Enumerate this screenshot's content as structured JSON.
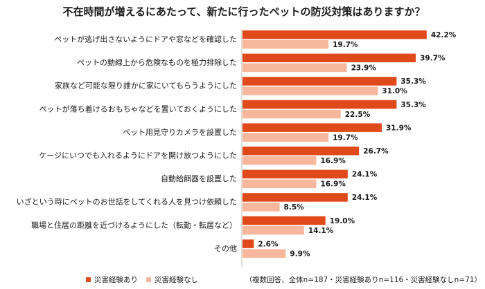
{
  "chart_data": {
    "type": "bar",
    "orientation": "horizontal",
    "title": "不在時間が増えるにあたって、新たに行ったペットの防災対策はありますか？",
    "categories": [
      "ペットが逃げ出さないようにドアや窓などを確認した",
      "ペットの動線上から危険なものを極力排除した",
      "家族など可能な限り誰かに家にいてもらうようにした",
      "ペットが落ち着けるおもちゃなどを置いておくようにした",
      "ペット用見守りカメラを設置した",
      "ケージにいつでも入れるようにドアを開け放つようにした",
      "自動給餌器を設置した",
      "いざという時にペットのお世話をしてくれる人を見つけ依頼した",
      "職場と住居の距離を近づけるようにした（転勤・転居など）",
      "その他"
    ],
    "series": [
      {
        "name": "災害経験あり",
        "color": "#e04a1b",
        "values": [
          42.2,
          39.7,
          35.3,
          35.3,
          31.9,
          26.7,
          24.1,
          24.1,
          19.0,
          2.6
        ],
        "labels": [
          "42.2%",
          "39.7%",
          "35.3%",
          "35.3%",
          "31.9%",
          "26.7%",
          "24.1%",
          "24.1%",
          "19.0%",
          "2.6%"
        ]
      },
      {
        "name": "災害経験なし",
        "color": "#f7b79c",
        "values": [
          19.7,
          23.9,
          31.0,
          22.5,
          19.7,
          16.9,
          16.9,
          8.5,
          14.1,
          9.9
        ],
        "labels": [
          "19.7%",
          "23.9%",
          "31.0%",
          "22.5%",
          "19.7%",
          "16.9%",
          "16.9%",
          "8.5%",
          "14.1%",
          "9.9%"
        ]
      }
    ],
    "xlim": [
      0,
      50
    ],
    "grid": false,
    "legend_position": "bottom-left",
    "note": "（複数回答、全体n=187・災害経験ありn=116・災害経験なしn=71）"
  }
}
